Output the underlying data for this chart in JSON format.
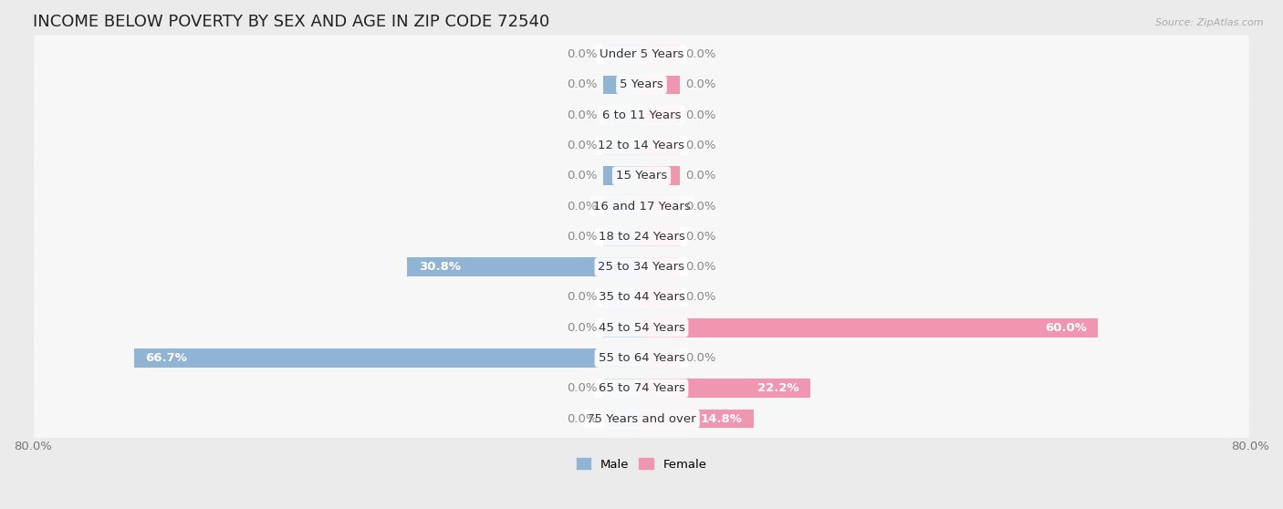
{
  "title": "INCOME BELOW POVERTY BY SEX AND AGE IN ZIP CODE 72540",
  "source": "Source: ZipAtlas.com",
  "categories": [
    "Under 5 Years",
    "5 Years",
    "6 to 11 Years",
    "12 to 14 Years",
    "15 Years",
    "16 and 17 Years",
    "18 to 24 Years",
    "25 to 34 Years",
    "35 to 44 Years",
    "45 to 54 Years",
    "55 to 64 Years",
    "65 to 74 Years",
    "75 Years and over"
  ],
  "male_values": [
    0.0,
    0.0,
    0.0,
    0.0,
    0.0,
    0.0,
    0.0,
    30.8,
    0.0,
    0.0,
    66.7,
    0.0,
    0.0
  ],
  "female_values": [
    0.0,
    0.0,
    0.0,
    0.0,
    0.0,
    0.0,
    0.0,
    0.0,
    0.0,
    60.0,
    0.0,
    22.2,
    14.8
  ],
  "male_color": "#92b4d4",
  "female_color": "#f096b0",
  "background_color": "#ebebeb",
  "row_bg_color": "#f7f7f7",
  "xlim": 80.0,
  "stub_size": 5.0,
  "bar_height": 0.62,
  "title_fontsize": 13,
  "label_fontsize": 9.5,
  "tick_fontsize": 9.5,
  "category_fontsize": 9.5,
  "source_fontsize": 8
}
